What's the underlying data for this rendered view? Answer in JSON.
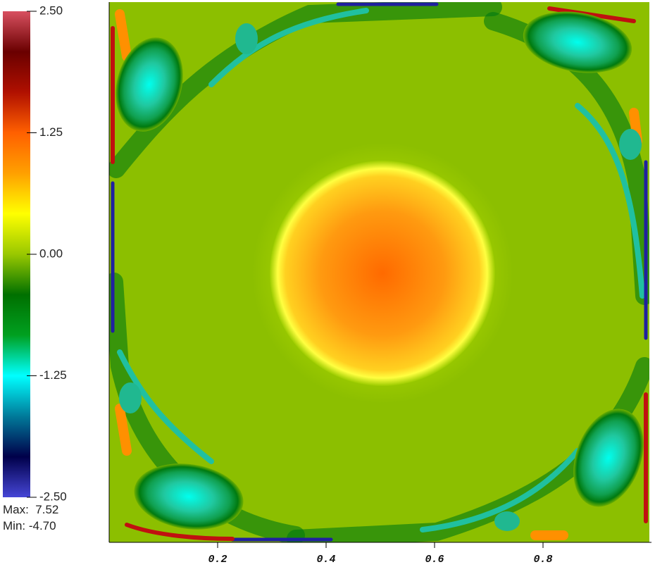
{
  "chart_data": {
    "type": "heatmap",
    "xlim": [
      0,
      1
    ],
    "xticks": [
      0.2,
      0.4,
      0.6,
      0.8
    ],
    "colorbar": {
      "lim": [
        -2.5,
        2.5
      ],
      "ticks": [
        {
          "value": 2.5,
          "label": "2.50"
        },
        {
          "value": 1.25,
          "label": "1.25"
        },
        {
          "value": 0,
          "label": "0.00"
        },
        {
          "value": -1.25,
          "label": "-1.25"
        },
        {
          "value": -2.5,
          "label": "-2.50"
        }
      ],
      "colors": [
        "#4646d6",
        "#00004a",
        "#007a9a",
        "#00ffff",
        "#00a020",
        "#007000",
        "#99c800",
        "#ffff00",
        "#ffa000",
        "#ff6000",
        "#b01000",
        "#6a0000",
        "#d85060"
      ]
    },
    "annotations": [
      "Max:  7.52",
      "Min: -4.70"
    ]
  }
}
